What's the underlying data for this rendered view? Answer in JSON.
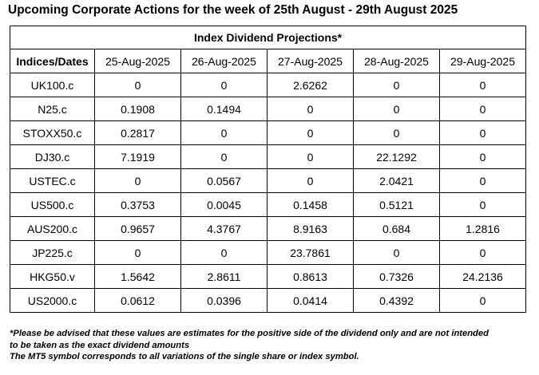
{
  "title": "Upcoming Corporate Actions for the week of 25th August - 29th August 2025",
  "table": {
    "caption": "Index Dividend Projections*",
    "headers": [
      "Indices/Dates",
      "25-Aug-2025",
      "26-Aug-2025",
      "27-Aug-2025",
      "28-Aug-2025",
      "29-Aug-2025"
    ],
    "rows": [
      [
        "UK100.c",
        "0",
        "0",
        "2.6262",
        "0",
        "0"
      ],
      [
        "N25.c",
        "0.1908",
        "0.1494",
        "0",
        "0",
        "0"
      ],
      [
        "STOXX50.c",
        "0.2817",
        "0",
        "0",
        "0",
        "0"
      ],
      [
        "DJ30.c",
        "7.1919",
        "0",
        "0",
        "22.1292",
        "0"
      ],
      [
        "USTEC.c",
        "0",
        "0.0567",
        "0",
        "2.0421",
        "0"
      ],
      [
        "US500.c",
        "0.3753",
        "0.0045",
        "0.1458",
        "0.5121",
        "0"
      ],
      [
        "AUS200.c",
        "0.9657",
        "4.3767",
        "8.9163",
        "0.684",
        "1.2816"
      ],
      [
        "JP225.c",
        "0",
        "0",
        "23.7861",
        "0",
        "0"
      ],
      [
        "HKG50.v",
        "1.5642",
        "2.8611",
        "0.8613",
        "0.7326",
        "24.2136"
      ],
      [
        "US2000.c",
        "0.0612",
        "0.0396",
        "0.0414",
        "0.4392",
        "0"
      ]
    ]
  },
  "footnote": {
    "line1": "*Please be advised that these values are estimates for the positive side of the dividend only and are not intended",
    "line2": "to be taken as the exact dividend amounts",
    "line3": "The MT5 symbol corresponds to all variations of the single share or index symbol."
  }
}
